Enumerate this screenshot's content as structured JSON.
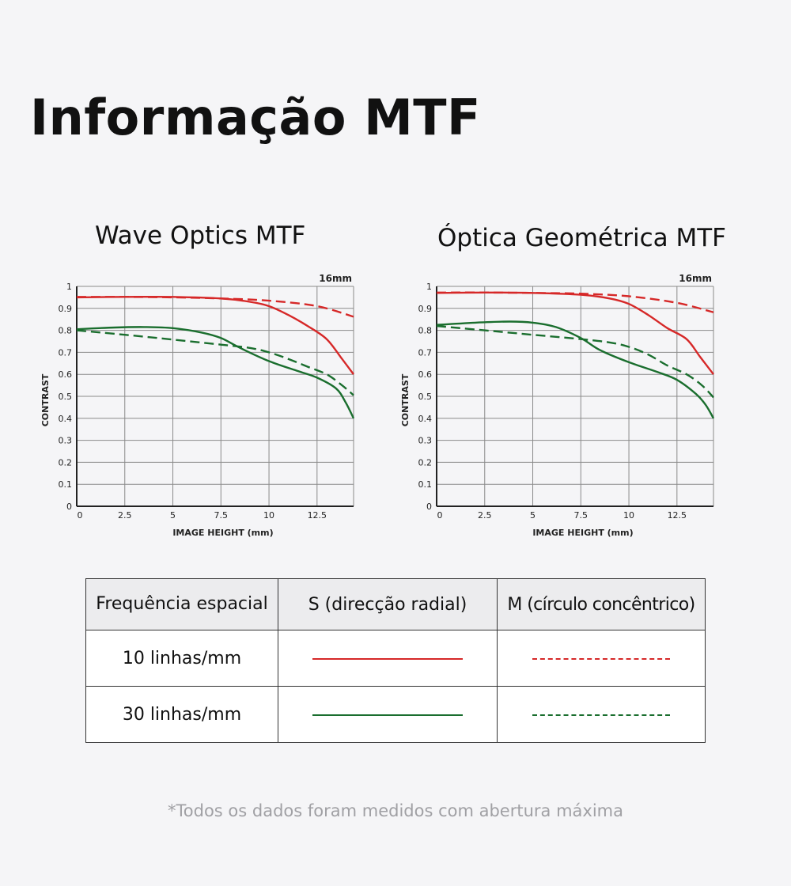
{
  "page": {
    "title": "Informação MTF"
  },
  "colors": {
    "red": "#d62828",
    "green": "#1a6e2e",
    "grid": "#8a8a8a"
  },
  "chart_data": [
    {
      "type": "line",
      "title": "Wave Optics MTF",
      "focal_label": "16mm",
      "xlabel": "IMAGE HEIGHT (mm)",
      "ylabel": "CONTRAST",
      "xlim": [
        0,
        14.4
      ],
      "ylim": [
        0,
        1
      ],
      "x_ticks": [
        "0",
        "2.5",
        "5",
        "7.5",
        "10",
        "12.5"
      ],
      "y_ticks": [
        "0",
        "0.1",
        "0.2",
        "0.3",
        "0.4",
        "0.5",
        "0.6",
        "0.7",
        "0.8",
        "0.9",
        "1"
      ],
      "series": [
        {
          "key": "s10",
          "color": "#d62828",
          "dashed": false,
          "points": [
            [
              0,
              0.95
            ],
            [
              2.5,
              0.952
            ],
            [
              5,
              0.952
            ],
            [
              7.5,
              0.945
            ],
            [
              9,
              0.93
            ],
            [
              10,
              0.91
            ],
            [
              11,
              0.87
            ],
            [
              12,
              0.82
            ],
            [
              13,
              0.76
            ],
            [
              13.8,
              0.67
            ],
            [
              14.4,
              0.6
            ]
          ]
        },
        {
          "key": "m10",
          "color": "#d62828",
          "dashed": true,
          "points": [
            [
              0,
              0.952
            ],
            [
              2.5,
              0.952
            ],
            [
              5,
              0.95
            ],
            [
              7.5,
              0.945
            ],
            [
              10,
              0.935
            ],
            [
              12.5,
              0.91
            ],
            [
              14.4,
              0.862
            ]
          ]
        },
        {
          "key": "s30",
          "color": "#1a6e2e",
          "dashed": false,
          "points": [
            [
              0,
              0.805
            ],
            [
              2,
              0.813
            ],
            [
              3.5,
              0.815
            ],
            [
              5,
              0.81
            ],
            [
              6.5,
              0.79
            ],
            [
              7.5,
              0.765
            ],
            [
              8.5,
              0.72
            ],
            [
              10,
              0.66
            ],
            [
              11.5,
              0.615
            ],
            [
              12.5,
              0.585
            ],
            [
              13.5,
              0.535
            ],
            [
              14,
              0.47
            ],
            [
              14.4,
              0.4
            ]
          ]
        },
        {
          "key": "m30",
          "color": "#1a6e2e",
          "dashed": true,
          "points": [
            [
              0,
              0.8
            ],
            [
              2.5,
              0.78
            ],
            [
              5,
              0.758
            ],
            [
              7.5,
              0.735
            ],
            [
              9,
              0.72
            ],
            [
              10,
              0.7
            ],
            [
              11,
              0.67
            ],
            [
              12,
              0.635
            ],
            [
              13,
              0.6
            ],
            [
              13.8,
              0.55
            ],
            [
              14.4,
              0.505
            ]
          ]
        }
      ]
    },
    {
      "type": "line",
      "title": "Óptica Geométrica MTF",
      "focal_label": "16mm",
      "xlabel": "IMAGE HEIGHT (mm)",
      "ylabel": "CONTRAST",
      "xlim": [
        0,
        14.4
      ],
      "ylim": [
        0,
        1
      ],
      "x_ticks": [
        "0",
        "2.5",
        "5",
        "7.5",
        "10",
        "12.5"
      ],
      "y_ticks": [
        "0",
        "0.1",
        "0.2",
        "0.3",
        "0.4",
        "0.5",
        "0.6",
        "0.7",
        "0.8",
        "0.9",
        "1"
      ],
      "series": [
        {
          "key": "s10",
          "color": "#d62828",
          "dashed": false,
          "points": [
            [
              0,
              0.97
            ],
            [
              2.5,
              0.972
            ],
            [
              5,
              0.97
            ],
            [
              7.5,
              0.962
            ],
            [
              9,
              0.945
            ],
            [
              10,
              0.92
            ],
            [
              11,
              0.87
            ],
            [
              12,
              0.81
            ],
            [
              13,
              0.76
            ],
            [
              13.7,
              0.68
            ],
            [
              14.4,
              0.6
            ]
          ]
        },
        {
          "key": "m10",
          "color": "#d62828",
          "dashed": true,
          "points": [
            [
              0,
              0.972
            ],
            [
              2.5,
              0.972
            ],
            [
              5,
              0.97
            ],
            [
              7.5,
              0.967
            ],
            [
              10,
              0.955
            ],
            [
              12.5,
              0.925
            ],
            [
              14.4,
              0.882
            ]
          ]
        },
        {
          "key": "s30",
          "color": "#1a6e2e",
          "dashed": false,
          "points": [
            [
              0,
              0.825
            ],
            [
              2,
              0.835
            ],
            [
              3.8,
              0.84
            ],
            [
              5,
              0.835
            ],
            [
              6.2,
              0.815
            ],
            [
              7.5,
              0.765
            ],
            [
              8.5,
              0.71
            ],
            [
              10,
              0.655
            ],
            [
              11.5,
              0.61
            ],
            [
              12.5,
              0.575
            ],
            [
              13.5,
              0.51
            ],
            [
              14,
              0.46
            ],
            [
              14.4,
              0.4
            ]
          ]
        },
        {
          "key": "m30",
          "color": "#1a6e2e",
          "dashed": true,
          "points": [
            [
              0,
              0.82
            ],
            [
              2.5,
              0.8
            ],
            [
              5,
              0.78
            ],
            [
              7.5,
              0.76
            ],
            [
              9,
              0.745
            ],
            [
              10,
              0.725
            ],
            [
              11,
              0.69
            ],
            [
              12,
              0.64
            ],
            [
              13,
              0.6
            ],
            [
              13.8,
              0.55
            ],
            [
              14.4,
              0.495
            ]
          ]
        }
      ]
    }
  ],
  "legend_table": {
    "header": {
      "freq": "Frequência espacial",
      "s": "S (direcção radial)",
      "m": "M (círculo concêntrico)"
    },
    "rows": [
      {
        "label": "10 linhas/mm",
        "color": "#d62828"
      },
      {
        "label": "30 linhas/mm",
        "color": "#1a6e2e"
      }
    ]
  },
  "footnote": "*Todos os dados foram medidos com abertura máxima"
}
